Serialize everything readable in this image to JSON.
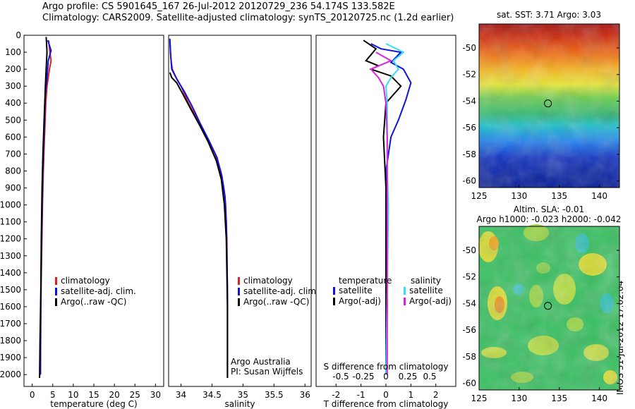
{
  "header": {
    "line1": "Argo profile: CS 5901645_167 26-Jul-2012 20120729_236 54.174S 133.582E",
    "line2": "Climatology: CARS2009. Satellite-adjusted climatology: synTS_20120725.nc (1.2d earlier)"
  },
  "colors": {
    "climatology": "#e02020",
    "satellite": "#1010e0",
    "argo": "#000000",
    "satellite_sal": "#30e0f0",
    "argo_sal": "#e020e0"
  },
  "stamp": "IMOS 31-Jul-2012 17:02:04",
  "chart_data": [
    {
      "type": "line",
      "id": "temperature",
      "xlabel": "temperature (deg C)",
      "ylabel": "",
      "xlim": [
        -2,
        32
      ],
      "ylim": [
        2070,
        0
      ],
      "xticks": [
        0,
        5,
        10,
        15,
        20,
        25,
        30
      ],
      "yticks": [
        0,
        100,
        200,
        300,
        400,
        500,
        600,
        700,
        800,
        900,
        1000,
        1100,
        1200,
        1300,
        1400,
        1500,
        1600,
        1700,
        1800,
        1900,
        2000
      ],
      "legend": [
        "climatology",
        "satellite-adj. clim.",
        "Argo(..raw -QC)"
      ],
      "legend_position": "lower-right",
      "series": [
        {
          "name": "climatology",
          "color": "#e02020",
          "x": [
            4.0,
            4.3,
            4.6,
            4.2,
            3.9,
            3.6,
            3.3,
            3.0,
            2.7,
            2.5,
            2.3,
            2.1,
            2.0
          ],
          "y": [
            30,
            100,
            150,
            200,
            250,
            300,
            400,
            600,
            800,
            1000,
            1300,
            1600,
            2000
          ]
        },
        {
          "name": "satellite-adj. clim.",
          "color": "#1010e0",
          "x": [
            3.8,
            4.6,
            3.9,
            3.6,
            3.2,
            3.0,
            2.7,
            2.5,
            2.3,
            2.1,
            2.0
          ],
          "y": [
            30,
            90,
            150,
            250,
            350,
            500,
            700,
            900,
            1200,
            1500,
            2000
          ]
        },
        {
          "name": "Argo(..raw -QC)",
          "color": "#000000",
          "x": [
            3.4,
            3.5,
            3.6,
            3.4,
            3.2,
            2.9,
            2.6,
            2.4,
            2.2,
            2.1,
            1.9,
            1.8
          ],
          "y": [
            10,
            50,
            100,
            200,
            300,
            500,
            700,
            900,
            1200,
            1500,
            1800,
            2020
          ]
        }
      ]
    },
    {
      "type": "line",
      "id": "salinity",
      "xlabel": "salinity",
      "ylabel": "",
      "xlim": [
        33.8,
        36.1
      ],
      "ylim": [
        2070,
        0
      ],
      "xticks": [
        34,
        34.5,
        35,
        35.5,
        36
      ],
      "legend": [
        "climatology",
        "satellite-adj. clim.",
        "Argo(..raw -QC)"
      ],
      "legend_position": "lower-right",
      "annotations": [
        "Argo Australia",
        "PI: Susan Wijffels"
      ],
      "series": [
        {
          "name": "climatology",
          "color": "#e02020",
          "x": [
            33.82,
            33.84,
            33.86,
            33.92,
            34.0,
            34.12,
            34.27,
            34.41,
            34.55,
            34.64,
            34.69,
            34.72,
            34.74,
            34.75,
            34.75
          ],
          "y": [
            40,
            150,
            200,
            250,
            300,
            400,
            500,
            600,
            700,
            800,
            900,
            1000,
            1200,
            1600,
            2000
          ]
        },
        {
          "name": "satellite-adj. clim.",
          "color": "#1010e0",
          "x": [
            33.82,
            33.83,
            33.85,
            33.95,
            34.05,
            34.18,
            34.31,
            34.45,
            34.58,
            34.66,
            34.71,
            34.73,
            34.75,
            34.75
          ],
          "y": [
            20,
            100,
            200,
            270,
            330,
            420,
            520,
            620,
            720,
            830,
            950,
            1100,
            1500,
            2020
          ]
        },
        {
          "name": "Argo(..raw -QC)",
          "color": "#000000",
          "x": [
            33.82,
            33.85,
            33.93,
            34.02,
            34.15,
            34.3,
            34.44,
            34.57,
            34.65,
            34.7,
            34.73,
            34.75,
            34.75
          ],
          "y": [
            220,
            250,
            280,
            340,
            430,
            530,
            630,
            740,
            850,
            1000,
            1200,
            1600,
            2020
          ]
        }
      ]
    },
    {
      "type": "line",
      "id": "difference",
      "xlabel": "T difference from climatology",
      "x2label": "S difference from climatology",
      "xlim": [
        -2.8,
        2.8
      ],
      "ylim": [
        2070,
        0
      ],
      "xticks": [
        -2,
        -1,
        0,
        1,
        2
      ],
      "x2ticks": [
        "-0.5",
        "-0.25",
        "0",
        "0.25",
        "0.5"
      ],
      "legend": [
        "temperature",
        "satellite",
        "Argo(-adj)",
        "salinity",
        "satellite",
        "Argo(-adj)"
      ],
      "legend_position": "lower",
      "series": [
        {
          "name": "satellite",
          "group": "temperature",
          "color": "#1010e0",
          "x": [
            -0.6,
            -0.2,
            0.6,
            0.2,
            0.7,
            1.0,
            0.8,
            0.5,
            0.2,
            0.0,
            0.0,
            0.05,
            0.0
          ],
          "y": [
            50,
            80,
            100,
            160,
            200,
            280,
            380,
            500,
            600,
            800,
            1200,
            1600,
            2000
          ]
        },
        {
          "name": "Argo(-adj)",
          "group": "temperature",
          "color": "#000000",
          "x": [
            -0.9,
            -0.4,
            -0.8,
            -0.3,
            -0.6,
            0.2,
            0.6,
            0.0,
            -0.1,
            0.0,
            0.0,
            0.0
          ],
          "y": [
            30,
            80,
            150,
            180,
            200,
            240,
            300,
            400,
            600,
            900,
            1500,
            2000
          ]
        },
        {
          "name": "satellite",
          "group": "salinity",
          "color": "#30e0f0",
          "x": [
            0.0,
            0.7,
            0.3,
            0.5,
            0.2,
            0.0,
            0.05,
            0.05,
            0.05,
            0.1,
            0.05,
            0.0
          ],
          "y": [
            50,
            100,
            150,
            200,
            250,
            300,
            400,
            600,
            800,
            1000,
            1500,
            2000
          ]
        },
        {
          "name": "Argo(-adj)",
          "group": "salinity",
          "color": "#e020e0",
          "x": [
            -0.4,
            0.2,
            -0.6,
            -0.3,
            -0.1,
            0.0,
            0.05,
            0.05,
            0.05,
            0.05,
            0.05
          ],
          "y": [
            100,
            150,
            200,
            250,
            300,
            400,
            600,
            800,
            1000,
            1500,
            2000
          ]
        }
      ]
    },
    {
      "type": "heatmap",
      "id": "sst-map",
      "title": "sat. SST: 3.71 Argo: 3.03",
      "xlim": [
        125,
        142.5
      ],
      "ylim": [
        -60.5,
        -48.2
      ],
      "xticks": [
        125,
        130,
        135,
        140
      ],
      "yticks": [
        -50,
        -52,
        -54,
        -56,
        -58,
        -60
      ],
      "marker": {
        "lon": 133.582,
        "lat": -54.174
      }
    },
    {
      "type": "heatmap",
      "id": "sla-map",
      "title": "Altim. SLA: -0.01",
      "subtitle": "Argo h1000: -0.023 h2000: -0.042",
      "xlim": [
        125,
        142.5
      ],
      "ylim": [
        -60.5,
        -48.2
      ],
      "xticks": [
        125,
        130,
        135,
        140
      ],
      "yticks": [
        -50,
        -52,
        -54,
        -56,
        -58,
        -60
      ],
      "marker": {
        "lon": 133.582,
        "lat": -54.174
      }
    }
  ]
}
